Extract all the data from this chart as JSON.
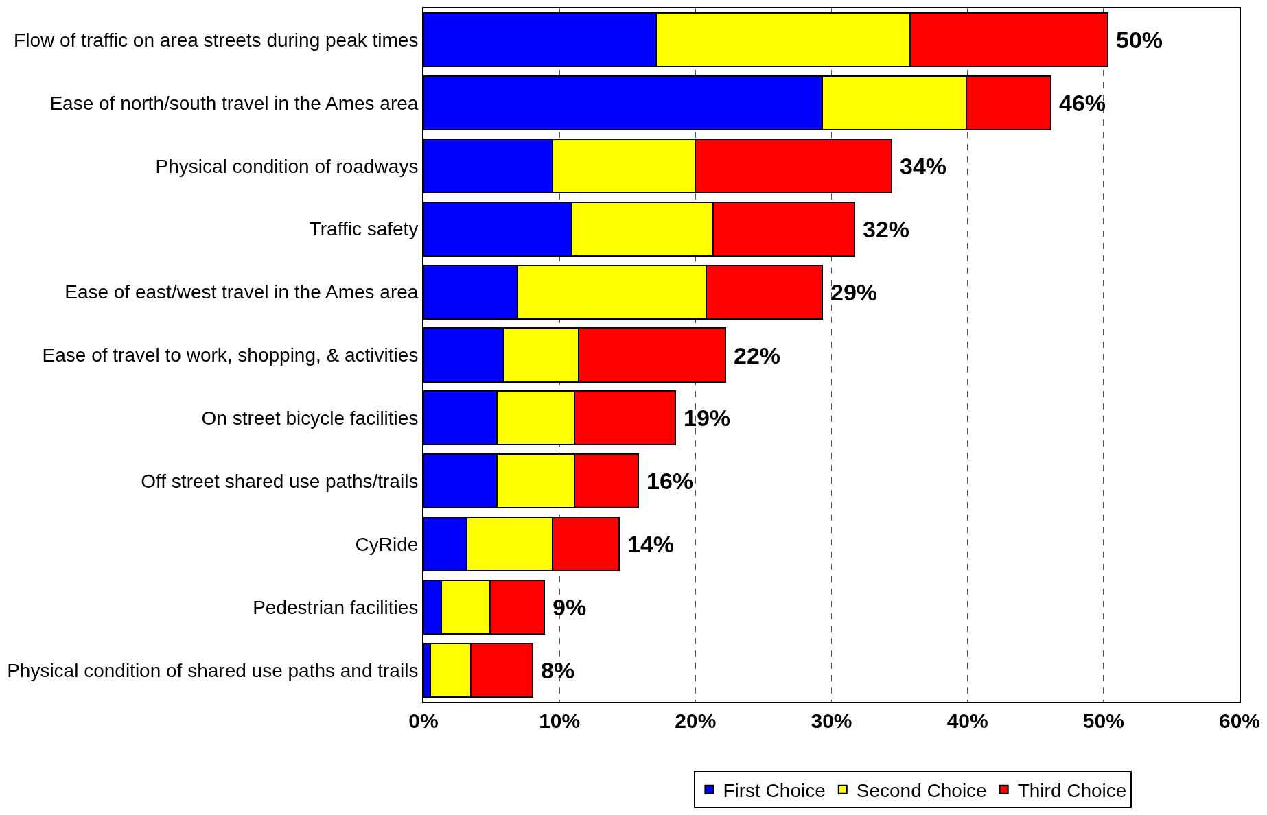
{
  "chart_data": {
    "type": "bar",
    "orientation": "horizontal",
    "stacked": true,
    "categories": [
      "Flow of traffic on area streets during peak times",
      "Ease of north/south travel in the Ames area",
      "Physical condition of roadways",
      "Traffic safety",
      "Ease of east/west travel in the Ames area",
      "Ease of travel to work, shopping, & activities",
      "On street bicycle facilities",
      "Off street shared use paths/trails",
      "CyRide",
      "Pedestrian facilities",
      "Physical condition of shared use paths and trails"
    ],
    "series": [
      {
        "name": "First Choice",
        "color": "#0000ff",
        "values": [
          17.1,
          29.3,
          9.5,
          10.9,
          6.9,
          5.9,
          5.4,
          5.4,
          3.2,
          1.3,
          0.5
        ]
      },
      {
        "name": "Second Choice",
        "color": "#ffff00",
        "values": [
          18.7,
          10.6,
          10.5,
          10.4,
          13.9,
          5.5,
          5.7,
          5.7,
          6.3,
          3.6,
          3.0
        ]
      },
      {
        "name": "Third Choice",
        "color": "#ff0000",
        "values": [
          14.5,
          6.2,
          14.4,
          10.4,
          8.5,
          10.8,
          7.4,
          4.7,
          4.9,
          4.0,
          4.5
        ]
      }
    ],
    "totals": [
      "50%",
      "46%",
      "34%",
      "32%",
      "29%",
      "22%",
      "19%",
      "16%",
      "14%",
      "9%",
      "8%"
    ],
    "xlim": [
      0,
      60
    ],
    "xticks": [
      {
        "value": 0,
        "label": "0%"
      },
      {
        "value": 10,
        "label": "10%"
      },
      {
        "value": 20,
        "label": "20%"
      },
      {
        "value": 30,
        "label": "30%"
      },
      {
        "value": 40,
        "label": "40%"
      },
      {
        "value": 50,
        "label": "50%"
      },
      {
        "value": 60,
        "label": "60%"
      }
    ],
    "grid": "x",
    "legend": "bottom"
  }
}
